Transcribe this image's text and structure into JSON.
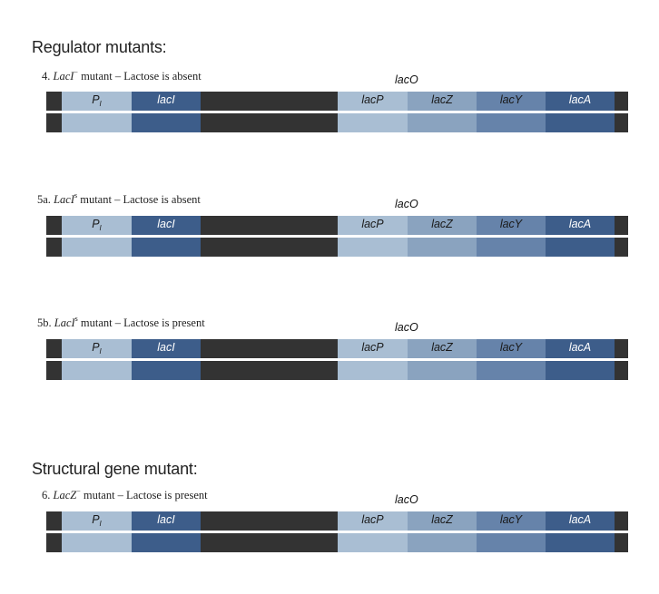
{
  "titles": {
    "regulator": "Regulator mutants:",
    "structural": "Structural gene mutant:"
  },
  "regions": {
    "operator_label": "lacO",
    "promoter_label": "P",
    "promoter_subscript": "I",
    "laci_label": "lacI",
    "lacp_label": "lacP",
    "lacz_label": "lacZ",
    "lacy_label": "lacY",
    "laca_label": "lacA"
  },
  "colors": {
    "dna_dark": "#333333",
    "promoter_i": "#a9bed3",
    "laci": "#3d5d8a",
    "lacp": "#a9bed3",
    "lacz": "#8aa3bf",
    "lacy": "#6683aa",
    "laca": "#3d5d8a"
  },
  "panels": [
    {
      "number": "4.",
      "gene": "LacI",
      "superscript": "−",
      "description": "mutant – Lactose is absent"
    },
    {
      "number": "5a.",
      "gene": "LacI",
      "superscript": "s",
      "description": "mutant – Lactose is absent"
    },
    {
      "number": "5b.",
      "gene": "LacI",
      "superscript": "s",
      "description": "mutant – Lactose is present"
    },
    {
      "number": "6.",
      "gene": "LacZ",
      "superscript": "−",
      "description": "mutant – Lactose is present"
    }
  ]
}
